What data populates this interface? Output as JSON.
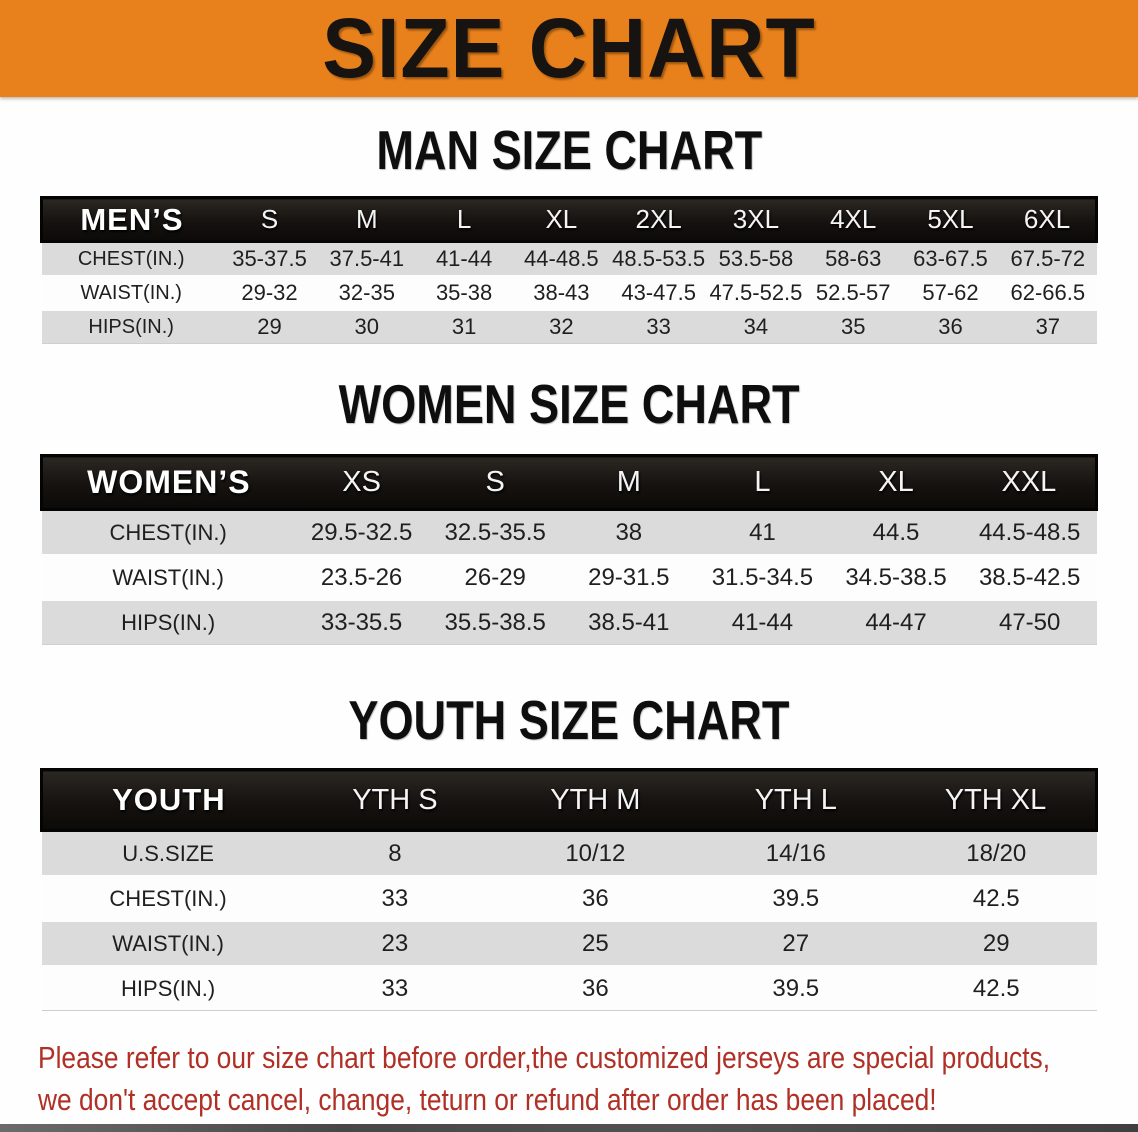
{
  "banner": {
    "title": "SIZE CHART",
    "bg_color": "#e8811c",
    "text_color": "#161310"
  },
  "colors": {
    "header_bar_bg": "#151210",
    "shaded_row_bg": "#dbdbdb",
    "light_row_bg": "#fdfdfd",
    "disclaimer_red": "#b03026"
  },
  "tables": [
    {
      "id": "men",
      "heading": "MAN SIZE CHART",
      "corner_label": "MEN’S",
      "columns": [
        "S",
        "M",
        "L",
        "XL",
        "2XL",
        "3XL",
        "4XL",
        "5XL",
        "6XL"
      ],
      "rows": [
        {
          "label": "CHEST(IN.)",
          "values": [
            "35-37.5",
            "37.5-41",
            "41-44",
            "44-48.5",
            "48.5-53.5",
            "53.5-58",
            "58-63",
            "63-67.5",
            "67.5-72"
          ]
        },
        {
          "label": "WAIST(IN.)",
          "values": [
            "29-32",
            "32-35",
            "35-38",
            "38-43",
            "43-47.5",
            "47.5-52.5",
            "52.5-57",
            "57-62",
            "62-66.5"
          ]
        },
        {
          "label": "HIPS(IN.)",
          "values": [
            "29",
            "30",
            "31",
            "32",
            "33",
            "34",
            "35",
            "36",
            "37"
          ]
        }
      ]
    },
    {
      "id": "women",
      "heading": "WOMEN SIZE CHART",
      "corner_label": "WOMEN’S",
      "columns": [
        "XS",
        "S",
        "M",
        "L",
        "XL",
        "XXL"
      ],
      "rows": [
        {
          "label": "CHEST(IN.)",
          "values": [
            "29.5-32.5",
            "32.5-35.5",
            "38",
            "41",
            "44.5",
            "44.5-48.5"
          ]
        },
        {
          "label": "WAIST(IN.)",
          "values": [
            "23.5-26",
            "26-29",
            "29-31.5",
            "31.5-34.5",
            "34.5-38.5",
            "38.5-42.5"
          ]
        },
        {
          "label": "HIPS(IN.)",
          "values": [
            "33-35.5",
            "35.5-38.5",
            "38.5-41",
            "41-44",
            "44-47",
            "47-50"
          ]
        }
      ]
    },
    {
      "id": "youth",
      "heading": "YOUTH SIZE CHART",
      "corner_label": "YOUTH",
      "columns": [
        "YTH S",
        "YTH M",
        "YTH L",
        "YTH XL"
      ],
      "rows": [
        {
          "label": "U.S.SIZE",
          "values": [
            "8",
            "10/12",
            "14/16",
            "18/20"
          ]
        },
        {
          "label": "CHEST(IN.)",
          "values": [
            "33",
            "36",
            "39.5",
            "42.5"
          ]
        },
        {
          "label": "WAIST(IN.)",
          "values": [
            "23",
            "25",
            "27",
            "29"
          ]
        },
        {
          "label": "HIPS(IN.)",
          "values": [
            "33",
            "36",
            "39.5",
            "42.5"
          ]
        }
      ]
    }
  ],
  "disclaimer": {
    "line1": "Please refer to our size chart before order,the customized jerseys are special products,",
    "line2": "we don't accept cancel, change, teturn or refund after order has been placed!"
  }
}
